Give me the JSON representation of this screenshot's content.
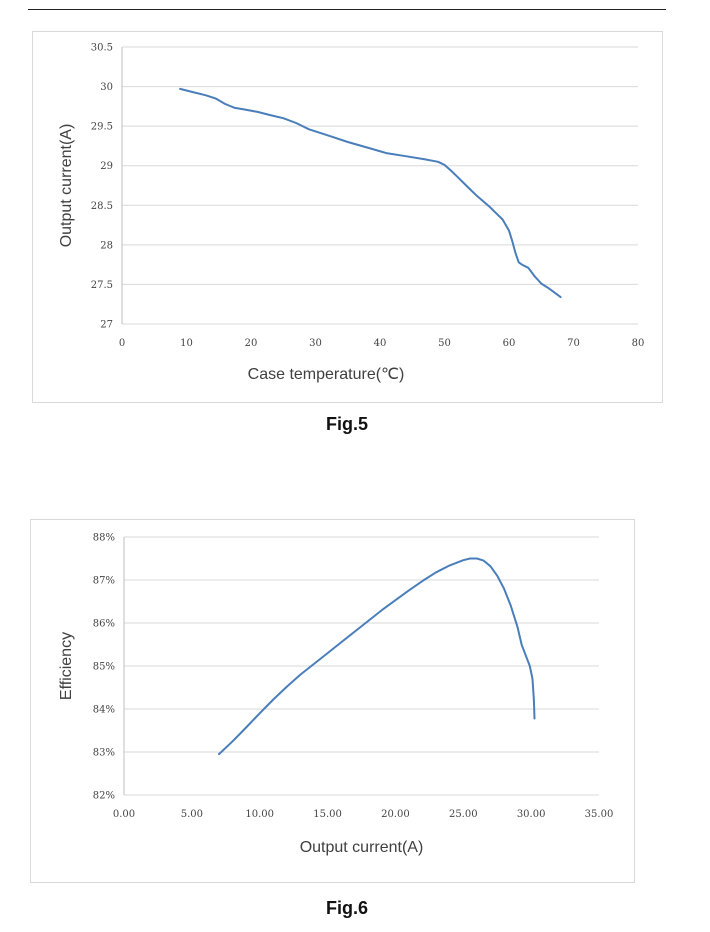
{
  "chart_data": [
    {
      "type": "line",
      "caption": "Fig.5",
      "xlabel": "Case temperature(℃)",
      "ylabel": "Output current(A)",
      "xlim": [
        0,
        80
      ],
      "ylim": [
        27,
        30.5
      ],
      "xticks": [
        "0",
        "10",
        "20",
        "30",
        "40",
        "50",
        "60",
        "70",
        "80"
      ],
      "yticks": [
        "27",
        "27.5",
        "28",
        "28.5",
        "29",
        "29.5",
        "30",
        "30.5"
      ],
      "grid": "horizontal",
      "color": "#4a7ebb",
      "series": [
        {
          "x": [
            9,
            11,
            13,
            14.5,
            16,
            17.5,
            19,
            21,
            23,
            25,
            27,
            29,
            32,
            35,
            38,
            41,
            44,
            47,
            49,
            50,
            51,
            52,
            53,
            54,
            55,
            56,
            57,
            58,
            59,
            60,
            60.5,
            61,
            61.5,
            62,
            63,
            64,
            65,
            66,
            67,
            68
          ],
          "y": [
            29.97,
            29.93,
            29.89,
            29.85,
            29.78,
            29.73,
            29.71,
            29.68,
            29.64,
            29.6,
            29.54,
            29.46,
            29.38,
            29.3,
            29.23,
            29.16,
            29.12,
            29.08,
            29.05,
            29.01,
            28.94,
            28.86,
            28.78,
            28.7,
            28.62,
            28.55,
            28.48,
            28.4,
            28.32,
            28.18,
            28.05,
            27.9,
            27.78,
            27.75,
            27.71,
            27.6,
            27.51,
            27.46,
            27.4,
            27.34
          ]
        }
      ]
    },
    {
      "type": "line",
      "caption": "Fig.6",
      "xlabel": "Output current(A)",
      "ylabel": "Efficiency",
      "xlim": [
        0,
        35
      ],
      "ylim": [
        82,
        88
      ],
      "xticks": [
        "0.00",
        "5.00",
        "10.00",
        "15.00",
        "20.00",
        "25.00",
        "30.00",
        "35.00"
      ],
      "yticks": [
        "82%",
        "83%",
        "84%",
        "85%",
        "86%",
        "87%",
        "88%"
      ],
      "grid": "horizontal",
      "color": "#4a7ebb",
      "series": [
        {
          "x": [
            7,
            8,
            9,
            10,
            11,
            12,
            13,
            14,
            15,
            16,
            17,
            18,
            19,
            20,
            21,
            22,
            23,
            24,
            25,
            25.5,
            26,
            26.5,
            27,
            27.5,
            28,
            28.5,
            29,
            29.3,
            29.6,
            29.9,
            30.1,
            30.2,
            30.25
          ],
          "y": [
            82.95,
            83.25,
            83.57,
            83.9,
            84.22,
            84.52,
            84.8,
            85.05,
            85.3,
            85.55,
            85.8,
            86.05,
            86.3,
            86.53,
            86.76,
            86.98,
            87.18,
            87.34,
            87.46,
            87.5,
            87.5,
            87.45,
            87.32,
            87.1,
            86.8,
            86.4,
            85.9,
            85.5,
            85.25,
            85.0,
            84.7,
            84.2,
            83.78
          ]
        }
      ]
    }
  ]
}
